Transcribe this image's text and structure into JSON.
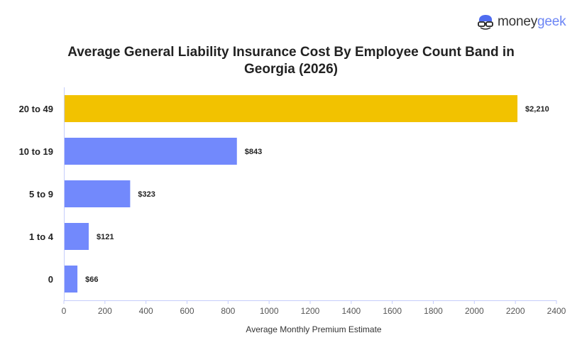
{
  "logo": {
    "part1": "money",
    "part2": "geek"
  },
  "chart_data": {
    "type": "bar",
    "orientation": "horizontal",
    "title": "Average General Liability Insurance Cost By Employee Count Band in Georgia (2026)",
    "xlabel": "Average Monthly Premium Estimate",
    "ylabel": "",
    "categories": [
      "20 to 49",
      "10 to 19",
      "5 to 9",
      "1 to 4",
      "0"
    ],
    "values": [
      2210,
      843,
      323,
      121,
      66
    ],
    "data_labels": [
      "$2,210",
      "$843",
      "$323",
      "$121",
      "$66"
    ],
    "highlight_index": 0,
    "colors": {
      "default": "#7289fc",
      "highlight": "#f2c200",
      "axis": "#c5cdfb"
    },
    "xlim": [
      0,
      2400
    ],
    "xticks": [
      0,
      200,
      400,
      600,
      800,
      1000,
      1200,
      1400,
      1600,
      1800,
      2000,
      2200,
      2400
    ],
    "grid": false,
    "legend": "none"
  }
}
